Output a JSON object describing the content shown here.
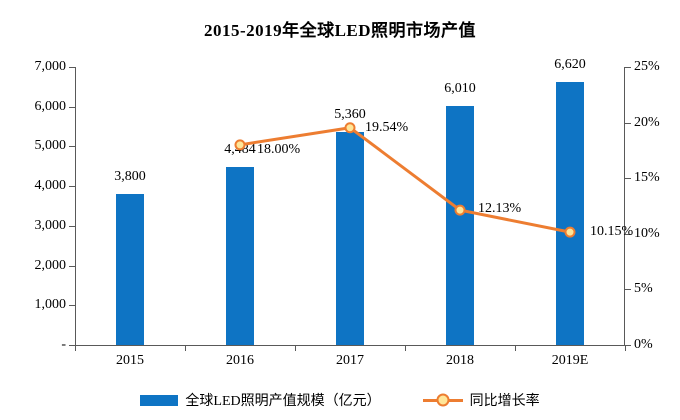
{
  "title": "2015-2019年全球LED照明市场产值",
  "legend": {
    "bars": "全球LED照明产值规模（亿元）",
    "line": "同比增长率"
  },
  "colors": {
    "bar": "#0E74C4",
    "line": "#ED7D31",
    "marker_fill": "#FFE699",
    "axis": "#595959",
    "text": "#000000"
  },
  "chart_data": {
    "type": "bar",
    "subtype": "combo-bar-line",
    "title": "2015-2019年全球LED照明市场产值",
    "categories": [
      "2015",
      "2016",
      "2017",
      "2018",
      "2019E"
    ],
    "series": [
      {
        "name": "全球LED照明产值规模（亿元）",
        "type": "bar",
        "axis": "left",
        "values": [
          3800,
          4484,
          5360,
          6010,
          6620
        ],
        "labels": [
          "3,800",
          "4,484",
          "5,360",
          "6,010",
          "6,620"
        ]
      },
      {
        "name": "同比增长率",
        "type": "line",
        "axis": "right",
        "values": [
          null,
          18.0,
          19.54,
          12.13,
          10.15
        ],
        "labels": [
          null,
          "18.00%",
          "19.54%",
          "12.13%",
          "10.15%"
        ]
      }
    ],
    "left_axis": {
      "min": 0,
      "max": 7000,
      "tick_labels": [
        "7,000",
        "6,000",
        "5,000",
        "4,000",
        "3,000",
        "2,000",
        "1,000",
        "-"
      ]
    },
    "right_axis": {
      "min": 0,
      "max": 25,
      "tick_labels": [
        "25%",
        "20%",
        "15%",
        "10%",
        "5%",
        "0%"
      ]
    },
    "grid": false,
    "legend_position": "bottom"
  }
}
